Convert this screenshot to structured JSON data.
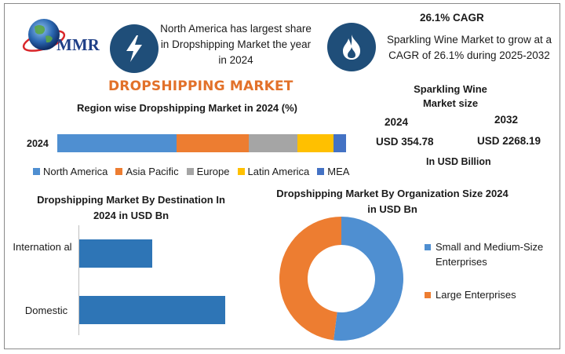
{
  "brand": {
    "logo_text": "MMR"
  },
  "info": {
    "left_text": "North America has largest share in Dropshipping Market the year in 2024",
    "right_title": "26.1% CAGR",
    "right_text": "Sparkling Wine Market to grow at a CAGR of 26.1% during 2025-2032",
    "left_icon": "lightning-bolt-icon",
    "right_icon": "flame-icon"
  },
  "colors": {
    "north_america": "#4f8fd1",
    "asia_pacific": "#ed7d31",
    "europe": "#a5a5a5",
    "latin_america": "#ffc000",
    "mea": "#4472c4",
    "accent": "#e2712a",
    "icon_bg": "#1f4e79"
  },
  "market_size": {
    "title": "Sparkling Wine Market size",
    "year_a": "2024",
    "value_a": "USD 354.78",
    "year_b": "2032",
    "value_b": "USD 2268.19",
    "unit": "In USD Billion"
  },
  "chart_data": [
    {
      "type": "bar",
      "stacked": true,
      "orientation": "horizontal",
      "title": "DROPSHIPPING MARKET",
      "subtitle": "Region wise Dropshipping Market in 2024 (%)",
      "categories": [
        "2024"
      ],
      "series": [
        {
          "name": "North America",
          "values": [
            43
          ]
        },
        {
          "name": "Asia Pacific",
          "values": [
            26
          ]
        },
        {
          "name": "Europe",
          "values": [
            17.5
          ]
        },
        {
          "name": "Latin America",
          "values": [
            13
          ]
        },
        {
          "name": "MEA",
          "values": [
            4.5
          ]
        }
      ],
      "legend_position": "bottom"
    },
    {
      "type": "bar",
      "orientation": "horizontal",
      "title": "Dropshipping Market By Destination In 2024 in USD Bn",
      "categories": [
        "Internation al",
        "Domestic"
      ],
      "values": [
        100,
        200
      ],
      "grid": false
    },
    {
      "type": "pie",
      "donut": true,
      "title": "Dropshipping Market By Organization Size 2024 in USD Bn",
      "labels": [
        "Small and Medium-Size Enterprises",
        "Large Enterprises"
      ],
      "values": [
        52,
        48
      ],
      "legend_position": "right"
    }
  ]
}
